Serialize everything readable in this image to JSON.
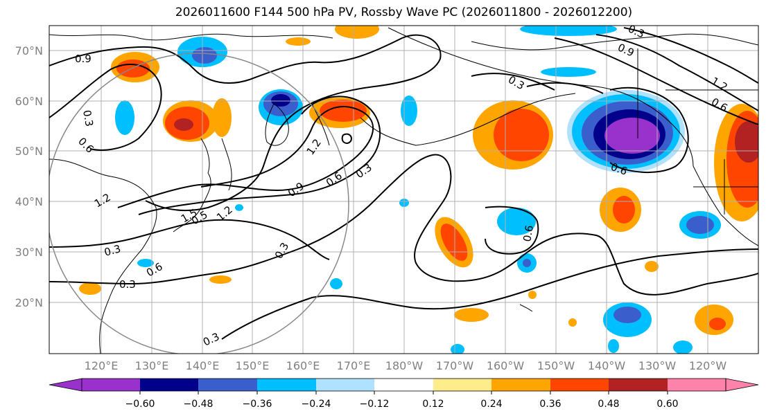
{
  "title": "2026011600 F144 500 hPa PV, Rossby Wave PC (2026011800 - 2026012200)",
  "map": {
    "lat_labels": [
      "70°N",
      "60°N",
      "50°N",
      "40°N",
      "30°N",
      "20°N"
    ],
    "lon_labels": [
      "120°E",
      "130°E",
      "140°E",
      "150°E",
      "160°E",
      "170°E",
      "180°W",
      "170°W",
      "160°W",
      "150°W",
      "140°W",
      "130°W",
      "120°W"
    ],
    "contour_labels": [
      "0.9",
      "0.3",
      "0.6",
      "1.2",
      "0.9",
      "0.6",
      "0.3",
      "1.5",
      "1.2",
      "0.3",
      "0.3",
      "0.6",
      "0.3",
      "0.3",
      "0.9",
      "0.3",
      "1.2",
      "0.6",
      "0.6",
      "0.6",
      "1.2",
      "0.3",
      "0.5"
    ]
  },
  "colorbar": {
    "ticks": [
      "−0.60",
      "−0.48",
      "−0.36",
      "−0.24",
      "−0.12",
      "0.12",
      "0.24",
      "0.36",
      "0.48",
      "0.60"
    ],
    "colors": [
      "#9932cc",
      "#00008b",
      "#3a5fcd",
      "#00bfff",
      "#b0e2ff",
      "#ffffff",
      "#ffec8b",
      "#ffa500",
      "#ff4500",
      "#b22222",
      "#ff82ab"
    ]
  }
}
